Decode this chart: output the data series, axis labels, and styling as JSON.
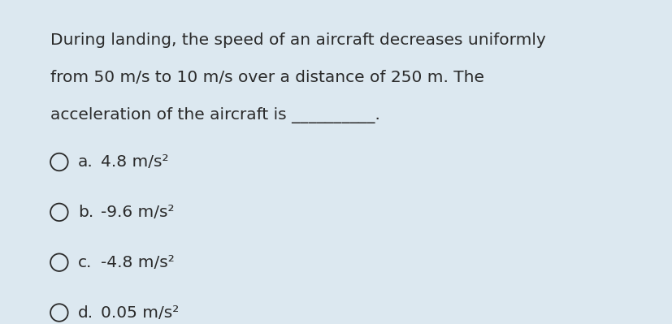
{
  "background_color": "#dce8f0",
  "question_line1": "During landing, the speed of an aircraft decreases uniformly",
  "question_line2": "from 50 m/s to 10 m/s over a distance of 250 m. The",
  "question_line3": "acceleration of the aircraft is __________.",
  "options": [
    {
      "label": "a.",
      "text": "4.8 m/s²"
    },
    {
      "label": "b.",
      "text": "-9.6 m/s²"
    },
    {
      "label": "c.",
      "text": "-4.8 m/s²"
    },
    {
      "label": "d.",
      "text": "0.05 m/s²"
    }
  ],
  "text_color": "#2a2a2a",
  "font_size_question": 14.5,
  "font_size_option": 14.5,
  "figsize": [
    8.28,
    3.99
  ],
  "dpi": 100
}
